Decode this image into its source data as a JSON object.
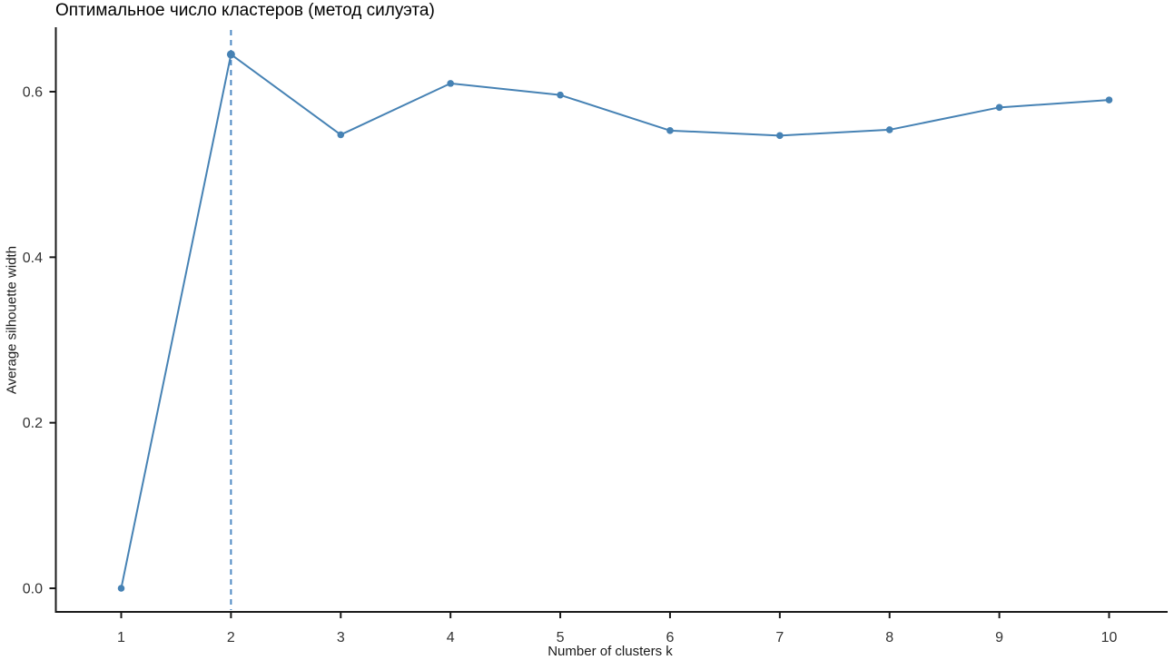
{
  "chart_data": {
    "type": "line",
    "title": "Оптимальное число кластеров (метод силуэта)",
    "xlabel": "Number of clusters k",
    "ylabel": "Average silhouette width",
    "x": [
      1,
      2,
      3,
      4,
      5,
      6,
      7,
      8,
      9,
      10
    ],
    "series": [
      {
        "name": "average-silhouette-width",
        "values": [
          0.0,
          0.645,
          0.548,
          0.61,
          0.596,
          0.553,
          0.547,
          0.554,
          0.581,
          0.59
        ]
      }
    ],
    "optimal_k": 2,
    "xticks": [
      1,
      2,
      3,
      4,
      5,
      6,
      7,
      8,
      9,
      10
    ],
    "yticks": [
      "0.0",
      "0.2",
      "0.4",
      "0.6"
    ],
    "ylim": [
      0,
      0.66
    ],
    "grid": false,
    "legend": false,
    "colors": {
      "line": "#4682B4",
      "point": "#4682B4",
      "vline": "#4F8AC4",
      "axis": "#1a1a1a",
      "tick_text": "#333333"
    }
  }
}
